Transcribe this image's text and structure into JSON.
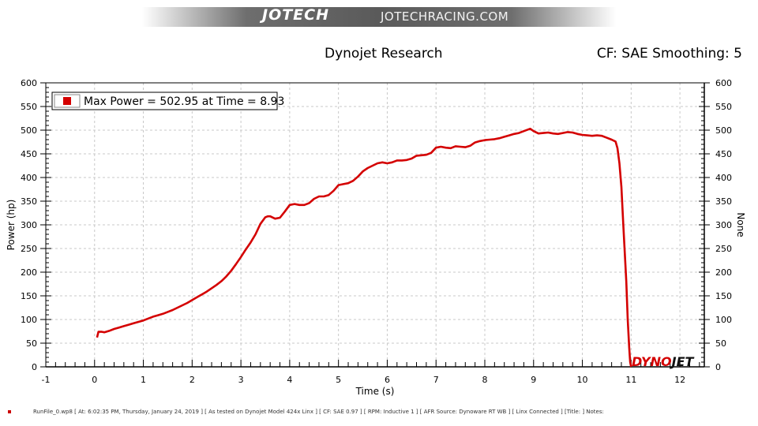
{
  "header": {
    "brand_logo": "JOTECH",
    "brand_site": "JOTECHRACING.COM"
  },
  "chart_data": {
    "type": "line",
    "title": "Dynojet Research",
    "subtitle": "CF: SAE Smoothing: 5",
    "xlabel": "Time (s)",
    "ylabel": "Power (hp)",
    "y2label": "None",
    "xlim": [
      -1,
      12.5
    ],
    "ylim": [
      0,
      600
    ],
    "x_ticks": [
      -1,
      0,
      1,
      2,
      3,
      4,
      5,
      6,
      7,
      8,
      9,
      10,
      11,
      12
    ],
    "y_ticks": [
      0,
      50,
      100,
      150,
      200,
      250,
      300,
      350,
      400,
      450,
      500,
      550,
      600
    ],
    "grid": true,
    "legend": {
      "placement": "top-left",
      "entries": [
        "Max Power = 502.95 at Time = 8.93"
      ]
    },
    "watermark": "DYNOJET",
    "series": [
      {
        "color": "#d40000",
        "points": [
          [
            0.05,
            62
          ],
          [
            0.08,
            74
          ],
          [
            0.15,
            74
          ],
          [
            0.2,
            73
          ],
          [
            0.3,
            76
          ],
          [
            0.4,
            80
          ],
          [
            0.5,
            83
          ],
          [
            0.6,
            86
          ],
          [
            0.7,
            89
          ],
          [
            0.8,
            92
          ],
          [
            0.9,
            95
          ],
          [
            1.0,
            98
          ],
          [
            1.1,
            102
          ],
          [
            1.2,
            106
          ],
          [
            1.3,
            109
          ],
          [
            1.4,
            112
          ],
          [
            1.5,
            116
          ],
          [
            1.6,
            120
          ],
          [
            1.7,
            125
          ],
          [
            1.8,
            130
          ],
          [
            1.9,
            135
          ],
          [
            2.0,
            141
          ],
          [
            2.1,
            147
          ],
          [
            2.2,
            153
          ],
          [
            2.3,
            159
          ],
          [
            2.4,
            166
          ],
          [
            2.5,
            173
          ],
          [
            2.6,
            181
          ],
          [
            2.7,
            191
          ],
          [
            2.8,
            203
          ],
          [
            2.9,
            217
          ],
          [
            3.0,
            232
          ],
          [
            3.1,
            248
          ],
          [
            3.2,
            263
          ],
          [
            3.3,
            280
          ],
          [
            3.4,
            302
          ],
          [
            3.5,
            316
          ],
          [
            3.55,
            318
          ],
          [
            3.6,
            318
          ],
          [
            3.7,
            313
          ],
          [
            3.8,
            315
          ],
          [
            3.9,
            328
          ],
          [
            4.0,
            342
          ],
          [
            4.1,
            344
          ],
          [
            4.2,
            342
          ],
          [
            4.3,
            342
          ],
          [
            4.4,
            346
          ],
          [
            4.5,
            355
          ],
          [
            4.6,
            360
          ],
          [
            4.7,
            360
          ],
          [
            4.8,
            363
          ],
          [
            4.9,
            372
          ],
          [
            5.0,
            384
          ],
          [
            5.1,
            386
          ],
          [
            5.2,
            388
          ],
          [
            5.3,
            393
          ],
          [
            5.4,
            402
          ],
          [
            5.5,
            413
          ],
          [
            5.6,
            420
          ],
          [
            5.7,
            425
          ],
          [
            5.8,
            430
          ],
          [
            5.9,
            432
          ],
          [
            6.0,
            430
          ],
          [
            6.1,
            432
          ],
          [
            6.2,
            436
          ],
          [
            6.3,
            436
          ],
          [
            6.4,
            437
          ],
          [
            6.5,
            440
          ],
          [
            6.6,
            446
          ],
          [
            6.7,
            447
          ],
          [
            6.8,
            448
          ],
          [
            6.9,
            452
          ],
          [
            7.0,
            463
          ],
          [
            7.1,
            465
          ],
          [
            7.2,
            463
          ],
          [
            7.3,
            462
          ],
          [
            7.4,
            466
          ],
          [
            7.5,
            465
          ],
          [
            7.6,
            464
          ],
          [
            7.7,
            467
          ],
          [
            7.8,
            474
          ],
          [
            7.9,
            477
          ],
          [
            8.0,
            479
          ],
          [
            8.1,
            480
          ],
          [
            8.2,
            481
          ],
          [
            8.3,
            483
          ],
          [
            8.4,
            486
          ],
          [
            8.5,
            489
          ],
          [
            8.6,
            492
          ],
          [
            8.7,
            494
          ],
          [
            8.8,
            498
          ],
          [
            8.93,
            502.95
          ],
          [
            9.0,
            498
          ],
          [
            9.1,
            493
          ],
          [
            9.2,
            494
          ],
          [
            9.3,
            495
          ],
          [
            9.4,
            493
          ],
          [
            9.5,
            492
          ],
          [
            9.6,
            494
          ],
          [
            9.7,
            496
          ],
          [
            9.8,
            495
          ],
          [
            9.9,
            492
          ],
          [
            10.0,
            490
          ],
          [
            10.1,
            489
          ],
          [
            10.2,
            488
          ],
          [
            10.3,
            489
          ],
          [
            10.4,
            488
          ],
          [
            10.5,
            484
          ],
          [
            10.6,
            480
          ],
          [
            10.68,
            476
          ],
          [
            10.72,
            462
          ],
          [
            10.76,
            430
          ],
          [
            10.8,
            380
          ],
          [
            10.84,
            300
          ],
          [
            10.87,
            240
          ],
          [
            10.9,
            180
          ],
          [
            10.93,
            100
          ],
          [
            10.96,
            40
          ],
          [
            10.98,
            10
          ],
          [
            11.0,
            0
          ]
        ]
      }
    ]
  },
  "footer": {
    "run_info": "RunFile_0.wp8 [ At: 6:02:35 PM, Thursday, January 24, 2019 ] [ As tested on Dynojet Model 424x Linx ] [ CF: SAE 0.97 ] [ RPM: Inductive 1 ] [ AFR Source: Dynoware RT WB ] [ Linx Connected ] [Title: ] Notes:"
  }
}
